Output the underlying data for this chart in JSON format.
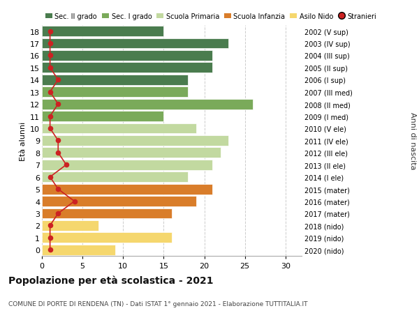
{
  "ages": [
    18,
    17,
    16,
    15,
    14,
    13,
    12,
    11,
    10,
    9,
    8,
    7,
    6,
    5,
    4,
    3,
    2,
    1,
    0
  ],
  "birth_years": [
    "2002 (V sup)",
    "2003 (IV sup)",
    "2004 (III sup)",
    "2005 (II sup)",
    "2006 (I sup)",
    "2007 (III med)",
    "2008 (II med)",
    "2009 (I med)",
    "2010 (V ele)",
    "2011 (IV ele)",
    "2012 (III ele)",
    "2013 (II ele)",
    "2014 (I ele)",
    "2015 (mater)",
    "2016 (mater)",
    "2017 (mater)",
    "2018 (nido)",
    "2019 (nido)",
    "2020 (nido)"
  ],
  "values": [
    15,
    23,
    21,
    21,
    18,
    18,
    26,
    15,
    19,
    23,
    22,
    21,
    18,
    21,
    19,
    16,
    7,
    16,
    9
  ],
  "stranieri": [
    1,
    1,
    1,
    1,
    2,
    1,
    2,
    1,
    1,
    2,
    2,
    3,
    1,
    2,
    4,
    2,
    1,
    1,
    1
  ],
  "bar_colors": [
    "#4a7c4e",
    "#4a7c4e",
    "#4a7c4e",
    "#4a7c4e",
    "#4a7c4e",
    "#7aaa5a",
    "#7aaa5a",
    "#7aaa5a",
    "#c2d9a0",
    "#c2d9a0",
    "#c2d9a0",
    "#c2d9a0",
    "#c2d9a0",
    "#d97d2a",
    "#d97d2a",
    "#d97d2a",
    "#f5d76e",
    "#f5d76e",
    "#f5d76e"
  ],
  "legend_labels": [
    "Sec. II grado",
    "Sec. I grado",
    "Scuola Primaria",
    "Scuola Infanzia",
    "Asilo Nido",
    "Stranieri"
  ],
  "legend_colors": [
    "#4a7c4e",
    "#7aaa5a",
    "#c2d9a0",
    "#d97d2a",
    "#f5d76e",
    "#cc2222"
  ],
  "title": "Popolazione per età scolastica - 2021",
  "subtitle": "COMUNE DI PORTE DI RENDENA (TN) - Dati ISTAT 1° gennaio 2021 - Elaborazione TUTTITALIA.IT",
  "xlabel_left": "Età alunni",
  "xlabel_right": "Anni di nascita",
  "xlim": [
    0,
    32
  ],
  "ylim": [
    -0.5,
    18.5
  ],
  "bg_color": "#ffffff",
  "bar_height": 0.85,
  "stranieri_color": "#cc2222"
}
